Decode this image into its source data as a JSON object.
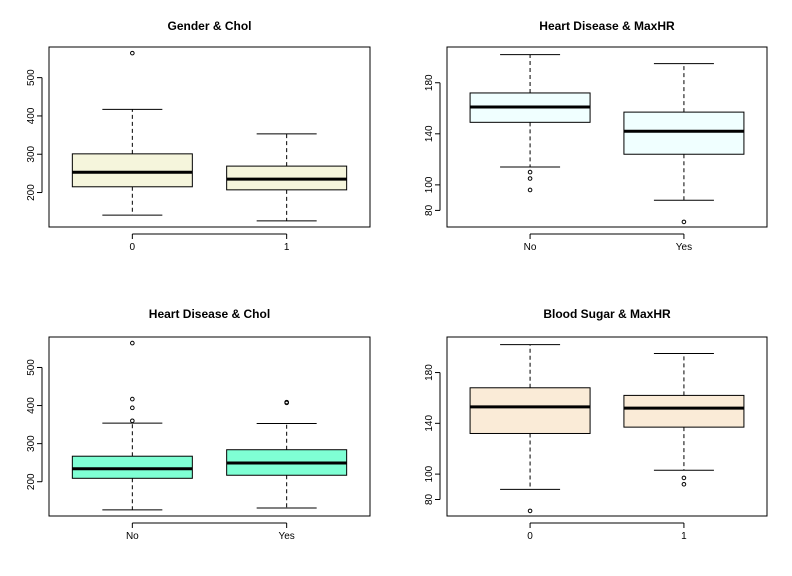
{
  "chart_data": [
    {
      "type": "boxplot",
      "title": "Gender & Chol",
      "xlabel": "",
      "ylabel": "",
      "categories": [
        "0",
        "1"
      ],
      "fill": "#f5f5dc",
      "ylim": [
        110,
        580
      ],
      "yticks": [
        200,
        300,
        400,
        500
      ],
      "boxes": [
        {
          "whisker_low": 141,
          "q1": 215,
          "median": 253,
          "q3": 301,
          "whisker_high": 417,
          "outliers": [
            564
          ]
        },
        {
          "whisker_low": 126,
          "q1": 207,
          "median": 235,
          "q3": 269,
          "whisker_high": 353,
          "outliers": []
        }
      ]
    },
    {
      "type": "boxplot",
      "title": "Heart Disease & MaxHR",
      "xlabel": "",
      "ylabel": "",
      "categories": [
        "No",
        "Yes"
      ],
      "fill": "#f0ffff",
      "ylim": [
        67,
        208
      ],
      "yticks": [
        80,
        100,
        140,
        180
      ],
      "boxes": [
        {
          "whisker_low": 114,
          "q1": 149,
          "median": 161,
          "q3": 172,
          "whisker_high": 202,
          "outliers": [
            96,
            105,
            110
          ]
        },
        {
          "whisker_low": 88,
          "q1": 124,
          "median": 142,
          "q3": 157,
          "whisker_high": 195,
          "outliers": [
            71
          ]
        }
      ]
    },
    {
      "type": "boxplot",
      "title": "Heart Disease & Chol",
      "xlabel": "",
      "ylabel": "",
      "categories": [
        "No",
        "Yes"
      ],
      "fill": "#7fffd4",
      "ylim": [
        110,
        580
      ],
      "yticks": [
        200,
        300,
        400,
        500
      ],
      "boxes": [
        {
          "whisker_low": 126,
          "q1": 209,
          "median": 234,
          "q3": 267,
          "whisker_high": 354,
          "outliers": [
            360,
            394,
            417,
            564
          ]
        },
        {
          "whisker_low": 131,
          "q1": 217,
          "median": 249,
          "q3": 284,
          "whisker_high": 353,
          "outliers": [
            407,
            409
          ]
        }
      ]
    },
    {
      "type": "boxplot",
      "title": "Blood Sugar & MaxHR",
      "xlabel": "",
      "ylabel": "",
      "categories": [
        "0",
        "1"
      ],
      "fill": "#faebd7",
      "ylim": [
        67,
        208
      ],
      "yticks": [
        80,
        100,
        140,
        180
      ],
      "boxes": [
        {
          "whisker_low": 88,
          "q1": 132,
          "median": 153,
          "q3": 168,
          "whisker_high": 202,
          "outliers": [
            71
          ]
        },
        {
          "whisker_low": 103,
          "q1": 137,
          "median": 152,
          "q3": 162,
          "whisker_high": 195,
          "outliers": [
            92,
            97
          ]
        }
      ]
    }
  ]
}
